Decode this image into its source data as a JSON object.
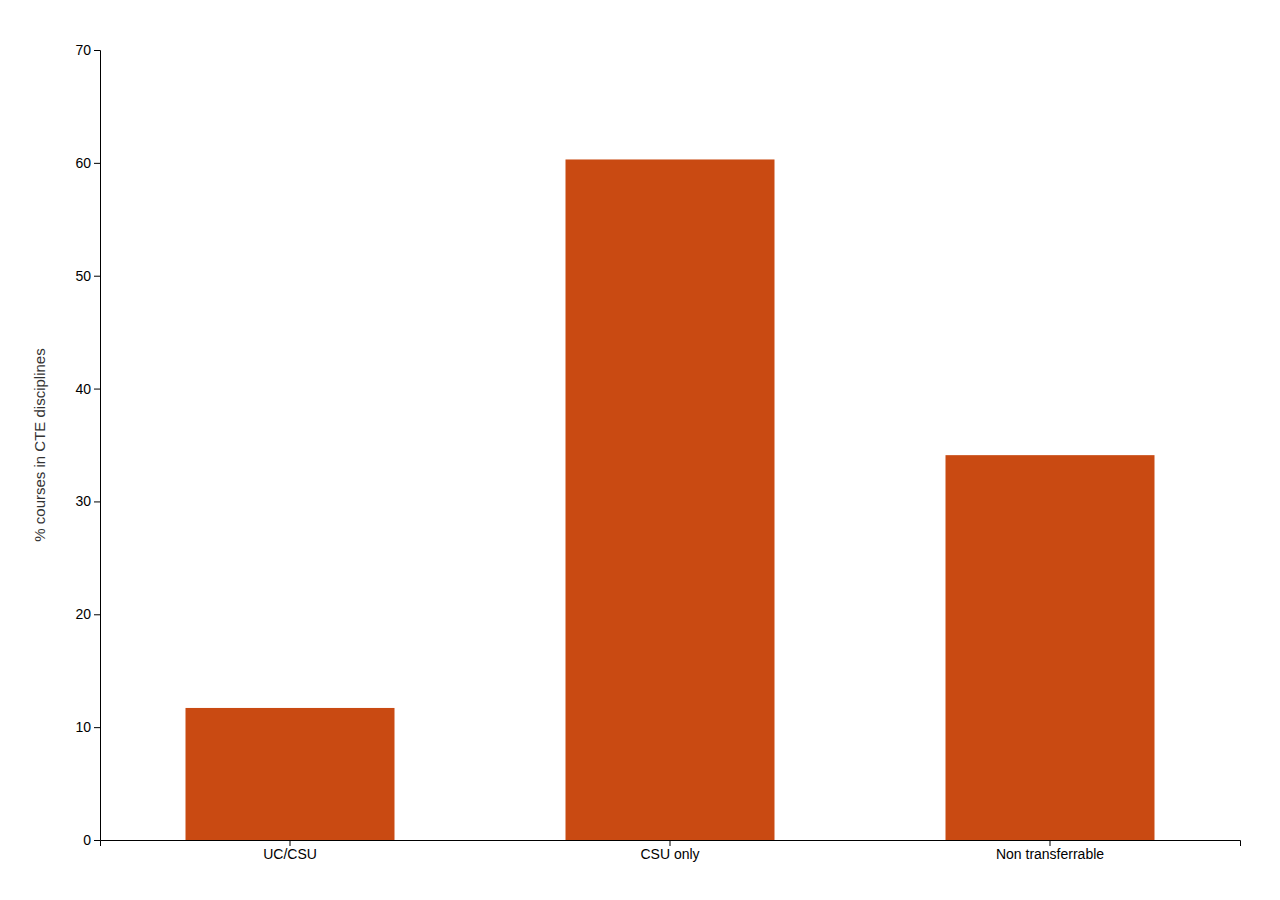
{
  "chart_data": {
    "type": "bar",
    "categories": [
      "UC/CSU",
      "CSU only",
      "Non transferrable"
    ],
    "values": [
      11.7,
      60.3,
      34.1
    ],
    "color": "#C94A12",
    "ylabel": "% courses in CTE disciplines",
    "ylim": [
      0,
      70
    ],
    "yticks": [
      0,
      10,
      20,
      30,
      40,
      50,
      60,
      70
    ],
    "grid": false
  }
}
